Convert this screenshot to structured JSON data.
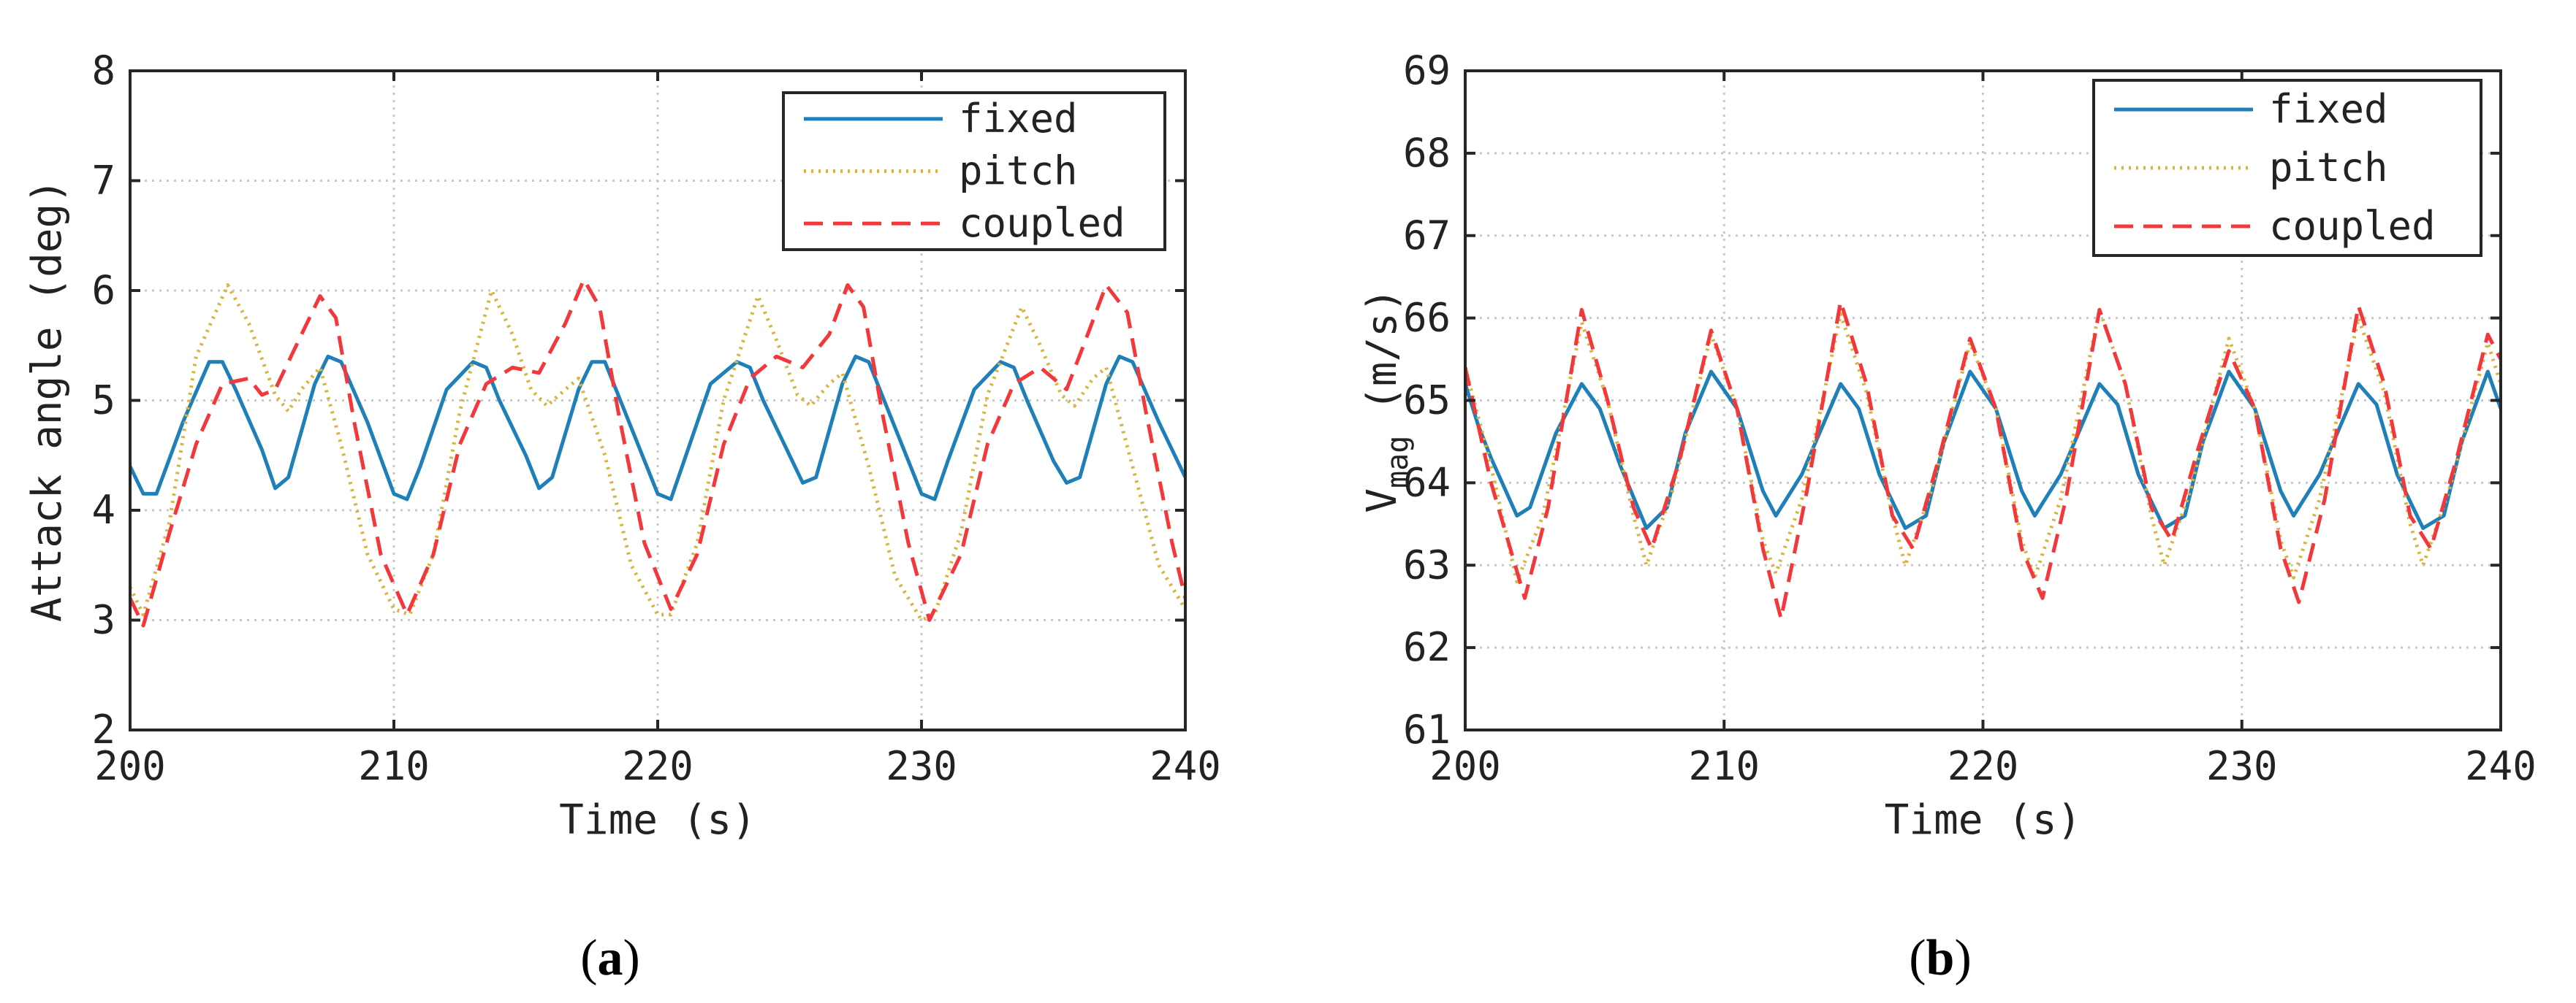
{
  "colors": {
    "fixed": "#1f7fb8",
    "pitch": "#d9b53f",
    "coupled": "#f2383b",
    "grid": "#c8c8c8",
    "axis": "#262626"
  },
  "chart_data": [
    {
      "type": "line",
      "panel_label": "a",
      "title": "",
      "xlabel": "Time (s)",
      "ylabel": "Attack angle (deg)",
      "xlim": [
        200,
        240
      ],
      "ylim": [
        2,
        8
      ],
      "xticks": [
        200,
        210,
        220,
        230,
        240
      ],
      "yticks": [
        2,
        3,
        4,
        5,
        6,
        7,
        8
      ],
      "grid": true,
      "legend_position": "top-right",
      "legend": [
        "fixed",
        "pitch",
        "coupled"
      ],
      "series": [
        {
          "name": "fixed",
          "style": "solid",
          "x": [
            200,
            200.5,
            201,
            202,
            203,
            203.5,
            204,
            205,
            205.5,
            206,
            207,
            207.5,
            208,
            209,
            210,
            210.5,
            211,
            212,
            213,
            213.5,
            214,
            215,
            215.5,
            216,
            217,
            217.5,
            218,
            219,
            220,
            220.5,
            221,
            222,
            223,
            223.5,
            224,
            225,
            225.5,
            226,
            227,
            227.5,
            228,
            229,
            230,
            230.5,
            231,
            232,
            233,
            233.5,
            234,
            235,
            235.5,
            236,
            237,
            237.5,
            238,
            239,
            240
          ],
          "values": [
            4.4,
            4.15,
            4.15,
            4.8,
            5.35,
            5.35,
            5.1,
            4.55,
            4.2,
            4.3,
            5.15,
            5.4,
            5.35,
            4.8,
            4.15,
            4.1,
            4.4,
            5.1,
            5.35,
            5.3,
            5.0,
            4.5,
            4.2,
            4.3,
            5.1,
            5.35,
            5.35,
            4.75,
            4.15,
            4.1,
            4.45,
            5.15,
            5.35,
            5.3,
            5.0,
            4.5,
            4.25,
            4.3,
            5.15,
            5.4,
            5.35,
            4.75,
            4.15,
            4.1,
            4.45,
            5.1,
            5.35,
            5.3,
            5.0,
            4.45,
            4.25,
            4.3,
            5.15,
            5.4,
            5.35,
            4.8,
            4.3
          ]
        },
        {
          "name": "pitch",
          "style": "dotted",
          "x": [
            200,
            200.5,
            201.5,
            202.5,
            203.7,
            204.5,
            205.5,
            206,
            206.5,
            207.2,
            208,
            209,
            210,
            210.6,
            211.5,
            212.5,
            213.7,
            214.5,
            215.2,
            215.8,
            216.5,
            217,
            218,
            219,
            220,
            220.5,
            221.5,
            222.5,
            223.8,
            224.5,
            225.3,
            225.8,
            226.5,
            227,
            228,
            229,
            230,
            230.5,
            231.5,
            232.5,
            233.8,
            234.5,
            235.3,
            235.8,
            236.5,
            237,
            238,
            239,
            240
          ],
          "values": [
            3.3,
            3.05,
            3.9,
            5.4,
            6.05,
            5.7,
            5.05,
            4.9,
            5.1,
            5.3,
            4.6,
            3.6,
            3.1,
            3.05,
            3.6,
            4.9,
            6.0,
            5.6,
            5.1,
            4.95,
            5.1,
            5.2,
            4.5,
            3.5,
            3.05,
            3.05,
            3.7,
            5.0,
            5.95,
            5.55,
            5.05,
            4.95,
            5.15,
            5.25,
            4.4,
            3.4,
            3.0,
            3.05,
            3.8,
            5.05,
            5.85,
            5.5,
            5.05,
            4.95,
            5.2,
            5.3,
            4.4,
            3.5,
            3.1
          ]
        },
        {
          "name": "coupled",
          "style": "dashed",
          "x": [
            200,
            200.5,
            201.5,
            202.5,
            203.5,
            204.5,
            205,
            205.5,
            206.5,
            207.2,
            207.8,
            208.5,
            209.5,
            210.5,
            211.5,
            212.5,
            213.5,
            214.5,
            215.5,
            216.5,
            217.2,
            217.8,
            218.5,
            219.5,
            220.5,
            221.5,
            222.5,
            223.5,
            224.5,
            225.5,
            226.5,
            227.2,
            227.8,
            228.5,
            229.5,
            230.3,
            231.5,
            232.5,
            233.5,
            234.5,
            235.5,
            236.3,
            237,
            237.8,
            238.5,
            239.5,
            240
          ],
          "values": [
            3.2,
            2.95,
            3.8,
            4.6,
            5.15,
            5.2,
            5.05,
            5.1,
            5.6,
            5.95,
            5.75,
            4.8,
            3.6,
            3.05,
            3.6,
            4.6,
            5.15,
            5.3,
            5.25,
            5.7,
            6.1,
            5.85,
            4.9,
            3.7,
            3.1,
            3.6,
            4.6,
            5.2,
            5.4,
            5.3,
            5.6,
            6.05,
            5.85,
            4.9,
            3.7,
            3.0,
            3.6,
            4.6,
            5.15,
            5.3,
            5.1,
            5.6,
            6.05,
            5.8,
            4.9,
            3.7,
            3.2
          ]
        }
      ]
    },
    {
      "type": "line",
      "panel_label": "b",
      "title": "",
      "xlabel": "Time (s)",
      "ylabel": "V",
      "ylabel_subscript": "mag",
      "ylabel_unit": "(m/s)",
      "xlim": [
        200,
        240
      ],
      "ylim": [
        61,
        69
      ],
      "xticks": [
        200,
        210,
        220,
        230,
        240
      ],
      "yticks": [
        61,
        62,
        63,
        64,
        65,
        66,
        67,
        68,
        69
      ],
      "grid": true,
      "legend_position": "top-right",
      "legend": [
        "fixed",
        "pitch",
        "coupled"
      ],
      "series": [
        {
          "name": "fixed",
          "style": "solid",
          "x": [
            200,
            200.5,
            201,
            202,
            202.5,
            203.5,
            204.5,
            205.2,
            206,
            207,
            207.8,
            208.5,
            209.5,
            210.5,
            211.5,
            212,
            213,
            214.5,
            215.2,
            216,
            217,
            217.8,
            218.5,
            219.5,
            220.5,
            221.5,
            222,
            223,
            224.5,
            225.2,
            226,
            227,
            227.8,
            228.5,
            229.5,
            230.5,
            231.5,
            232,
            233,
            234.5,
            235.2,
            236,
            237,
            237.8,
            238.5,
            239.5,
            240
          ],
          "values": [
            65.2,
            64.7,
            64.3,
            63.6,
            63.7,
            64.6,
            65.2,
            64.9,
            64.2,
            63.45,
            63.7,
            64.6,
            65.35,
            64.9,
            63.9,
            63.6,
            64.1,
            65.2,
            64.9,
            64.1,
            63.45,
            63.6,
            64.5,
            65.35,
            64.9,
            63.9,
            63.6,
            64.1,
            65.2,
            64.95,
            64.1,
            63.45,
            63.6,
            64.5,
            65.35,
            64.9,
            63.9,
            63.6,
            64.1,
            65.2,
            64.95,
            64.1,
            63.45,
            63.6,
            64.5,
            65.35,
            64.9
          ]
        },
        {
          "name": "pitch",
          "style": "dotted",
          "x": [
            200,
            201,
            202,
            203,
            204.5,
            205.5,
            206.5,
            207,
            208,
            209.5,
            210.5,
            211.5,
            212,
            213,
            214.5,
            215.5,
            216.5,
            217,
            218,
            219.5,
            220.5,
            221.5,
            222,
            223,
            224.5,
            225.5,
            226.5,
            227,
            228,
            229.5,
            230.5,
            231.5,
            232,
            233,
            234.5,
            235.5,
            236.5,
            237,
            238,
            239.5,
            240
          ],
          "values": [
            65.4,
            64.2,
            62.8,
            63.6,
            65.95,
            65.0,
            63.6,
            63.0,
            63.9,
            65.8,
            64.9,
            63.3,
            62.9,
            63.8,
            66.05,
            65.1,
            63.6,
            63.0,
            63.9,
            65.7,
            64.9,
            63.3,
            62.85,
            63.8,
            66.1,
            65.2,
            63.6,
            63.0,
            63.9,
            65.75,
            64.9,
            63.3,
            62.85,
            63.8,
            66.0,
            65.1,
            63.5,
            63.0,
            63.9,
            65.7,
            65.2
          ]
        },
        {
          "name": "coupled",
          "style": "dashed",
          "x": [
            200,
            201,
            202.3,
            203.2,
            204.5,
            205.5,
            206.5,
            207.2,
            208.3,
            209.5,
            210.5,
            211.5,
            212.2,
            213.2,
            214.5,
            215.5,
            216.5,
            217.3,
            218.3,
            219.5,
            220.5,
            221.5,
            222.3,
            223.2,
            224.5,
            225.5,
            226.5,
            227.3,
            228.3,
            229.5,
            230.5,
            231.5,
            232.2,
            233.2,
            234.5,
            235.5,
            236.5,
            237.3,
            238.3,
            239.5,
            240
          ],
          "values": [
            65.4,
            64.0,
            62.6,
            63.7,
            66.1,
            65.0,
            63.7,
            63.2,
            64.3,
            65.85,
            64.9,
            63.2,
            62.35,
            63.9,
            66.2,
            65.2,
            63.6,
            63.2,
            64.3,
            65.75,
            64.9,
            63.2,
            62.6,
            63.8,
            66.1,
            65.2,
            63.7,
            63.3,
            64.4,
            65.6,
            64.9,
            63.2,
            62.55,
            63.8,
            66.15,
            65.2,
            63.6,
            63.2,
            64.3,
            65.8,
            65.5
          ]
        }
      ]
    }
  ]
}
